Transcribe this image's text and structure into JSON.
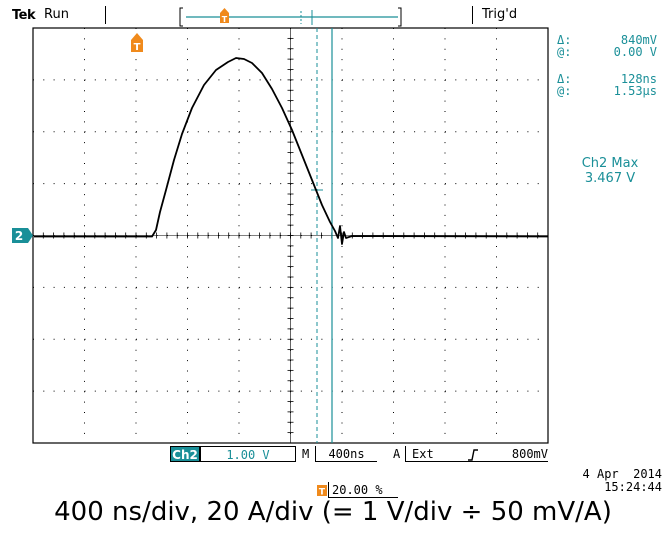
{
  "header": {
    "brand": "Tek",
    "acq_state": "Run",
    "trigger_status": "Trig'd",
    "trigger_position_marker": "T"
  },
  "cursor_readouts": {
    "voltage_delta_symbol": "Δ:",
    "voltage_delta": "840mV",
    "voltage_at_symbol": "@:",
    "voltage_at": "0.00 V",
    "time_delta_symbol": "Δ:",
    "time_delta": "128ns",
    "time_at_symbol": "@:",
    "time_at": "1.53µs"
  },
  "measurement": {
    "label": "Ch2 Max",
    "value": "3.467 V"
  },
  "channel_marker": "2",
  "trigger_marker_top": "T",
  "bottom_bar": {
    "channel": "Ch2",
    "volts_per_div": "1.00 V",
    "timebase_prefix": "M",
    "timebase": "400ns",
    "trigger_mode": "A",
    "trigger_source": "Ext",
    "trigger_slope_symbol": "⼯",
    "trigger_level": "800mV",
    "trigger_pos_marker": "T",
    "trigger_pos_percent": "20.00 %"
  },
  "date": "4 Apr  2014",
  "time": "15:24:44",
  "caption": "400 ns/div, 20 A/div (= 1 V/div ÷ 50 mV/A)",
  "colors": {
    "accent": "#1a8f98",
    "trigger_marker": "#f08a1c",
    "trace": "#000000"
  }
}
